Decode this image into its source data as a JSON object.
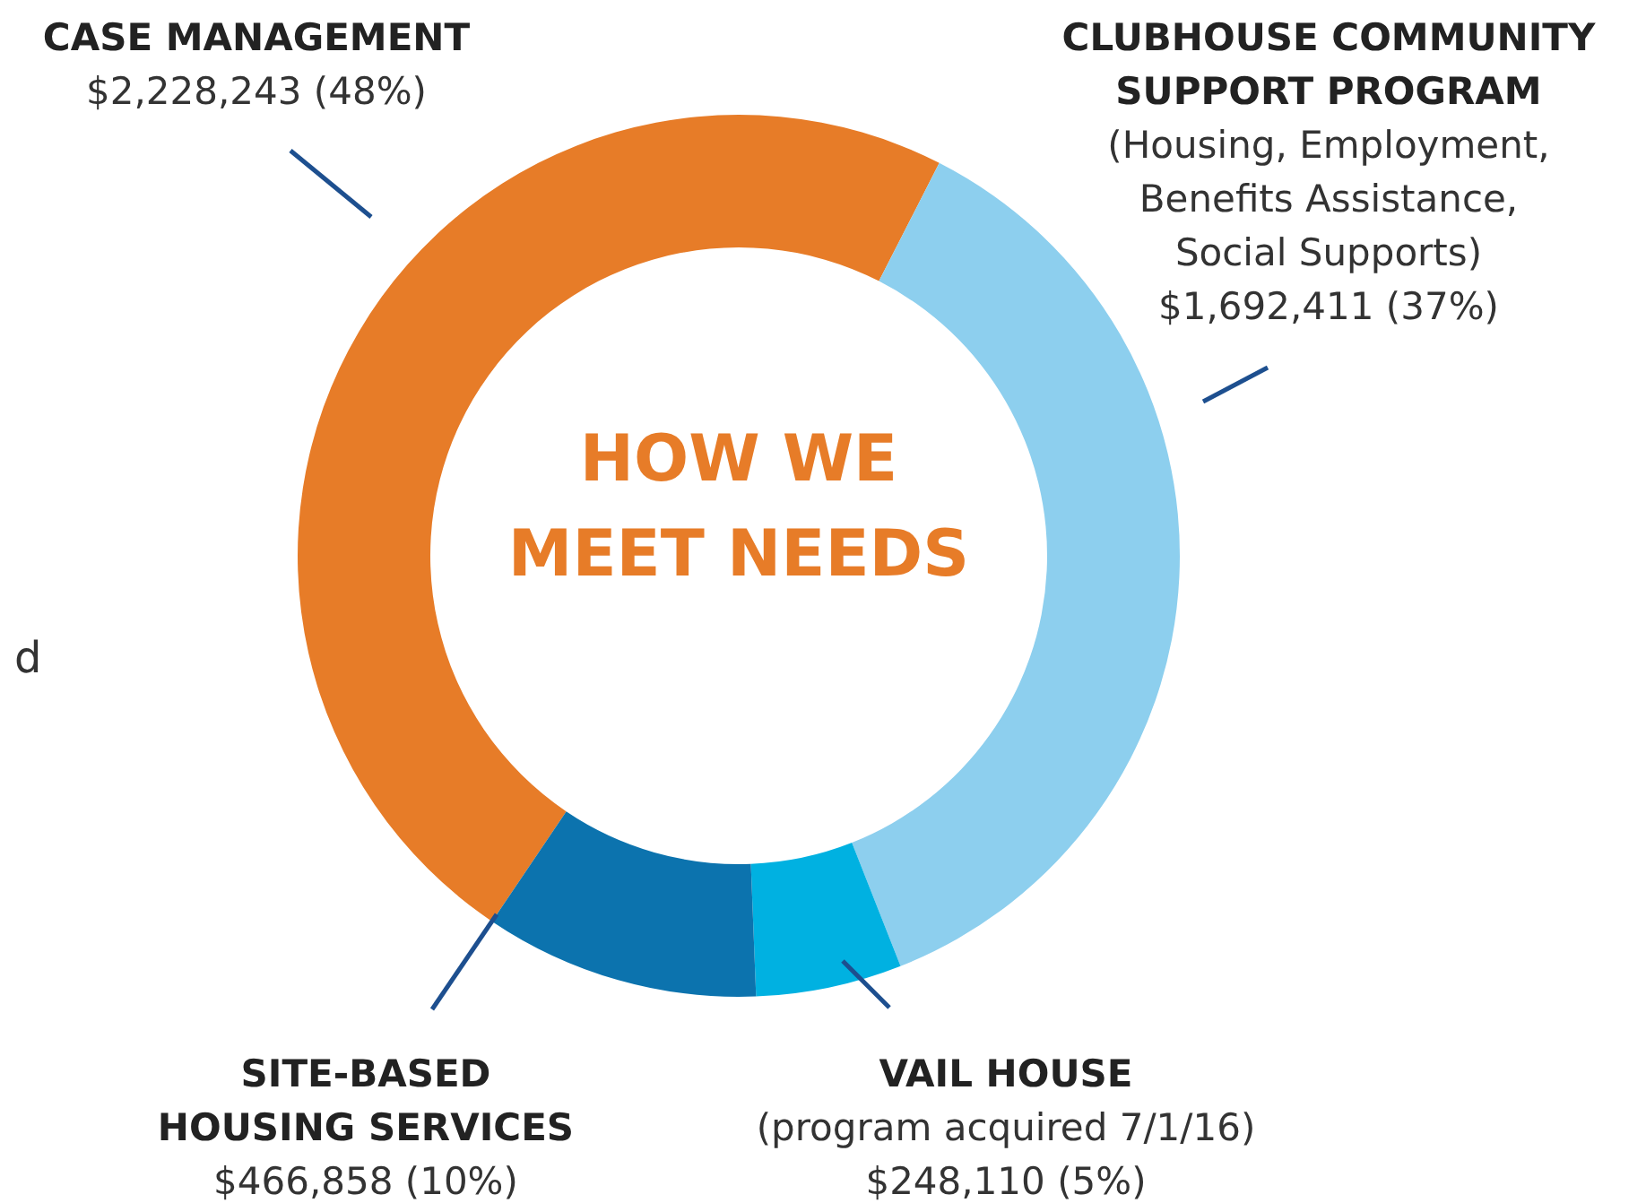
{
  "chart_data": {
    "type": "donut",
    "title": "HOW WE\nMEET NEEDS",
    "categories": [
      "CASE MANAGEMENT",
      "CLUBHOUSE COMMUNITY\nSUPPORT PROGRAM",
      "VAIL HOUSE",
      "SITE-BASED\nHOUSING SERVICES"
    ],
    "values": [
      2228243,
      1692411,
      248110,
      466858
    ],
    "colors": [
      "#e77c28",
      "#8dcfee",
      "#00b1e1",
      "#0c73ae"
    ],
    "value_labels": [
      "$2,228,243 (48%)",
      "(Housing, Employment,\nBenefits Assistance,\nSocial Supports)\n$1,692,411 (37%)",
      "(program acquired 7/1/16)\n$248,110 (5%)",
      "$466,858 (10%)"
    ],
    "annotations": [
      "d"
    ]
  }
}
